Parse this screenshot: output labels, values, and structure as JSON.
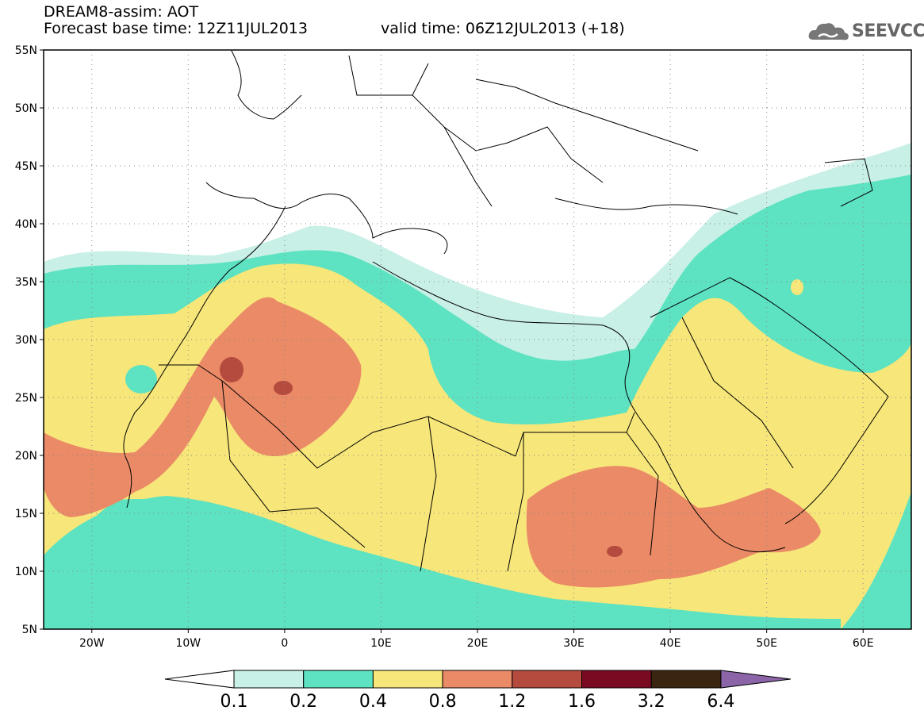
{
  "header": {
    "title_line1": "DREAM8-assim: AOT",
    "title_line2": "Forecast base time: 12Z11JUL2013",
    "valid_time": "valid time: 06Z12JUL2013 (+18)",
    "logo_text": "SEEVCCC",
    "logo_icon": "cloud-icon"
  },
  "map": {
    "projection": "lat-lon",
    "lon_range": [
      -25,
      65
    ],
    "lat_range": [
      5,
      55
    ],
    "lat_ticks": [
      "5N",
      "10N",
      "15N",
      "20N",
      "25N",
      "30N",
      "35N",
      "40N",
      "45N",
      "50N",
      "55N"
    ],
    "lon_ticks": [
      "20W",
      "10W",
      "0",
      "10E",
      "20E",
      "30E",
      "40E",
      "50E",
      "60E"
    ],
    "grid": "dotted"
  },
  "legend": {
    "labels": [
      "0.1",
      "0.2",
      "0.4",
      "0.8",
      "1.2",
      "1.6",
      "3.2",
      "6.4"
    ],
    "colors": [
      "#ffffff",
      "#c8f0e6",
      "#5de3c1",
      "#f7e67a",
      "#ea8a66",
      "#b44b3e",
      "#7a0a22",
      "#3a2510",
      "#8c64a8"
    ]
  },
  "colors": {
    "c0": "#c8f0e6",
    "c1": "#5de3c1",
    "c2": "#f7e67a",
    "c3": "#ea8a66",
    "c4": "#b44b3e"
  }
}
